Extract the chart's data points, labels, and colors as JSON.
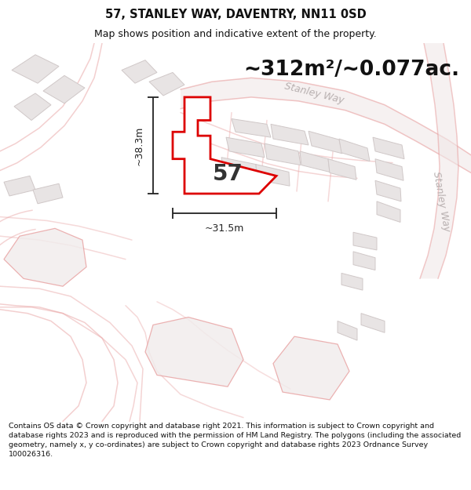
{
  "title": "57, STANLEY WAY, DAVENTRY, NN11 0SD",
  "subtitle": "Map shows position and indicative extent of the property.",
  "area_text": "~312m²/~0.077ac.",
  "plot_number": "57",
  "dim_width": "~31.5m",
  "dim_height": "~38.3m",
  "footer_text": "Contains OS data © Crown copyright and database right 2021. This information is subject to Crown copyright and database rights 2023 and is reproduced with the permission of HM Land Registry. The polygons (including the associated geometry, namely x, y co-ordinates) are subject to Crown copyright and database rights 2023 Ordnance Survey 100026316.",
  "bg_color": "#ffffff",
  "map_bg": "#f7f4f4",
  "road_stroke": "#e8a0a0",
  "road_fill": "#f7f0f0",
  "plot_fill": "#ffffff",
  "plot_edge": "#dd0000",
  "building_fill": "#e8e4e4",
  "building_edge": "#d0c8c8",
  "road_label_color": "#b8b0b0",
  "dim_line_color": "#222222",
  "title_color": "#111111",
  "footer_color": "#111111",
  "area_fontsize": 19,
  "title_fontsize": 10.5,
  "subtitle_fontsize": 9,
  "plot_label_fontsize": 20,
  "dim_fontsize": 9,
  "road_label_fontsize": 9,
  "footer_fontsize": 6.8
}
